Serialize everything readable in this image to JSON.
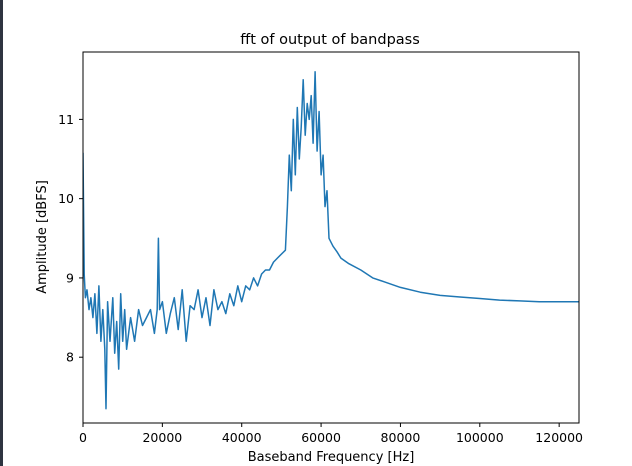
{
  "colors": {
    "line": "#1f77b4",
    "axes": "#000000",
    "background": "#ffffff",
    "window_strip": "#2e3440"
  },
  "chart_data": {
    "type": "line",
    "title": "fft of output of bandpass",
    "xlabel": "Baseband Frequency [Hz]",
    "ylabel": "Amplitude [dBFS]",
    "xlim": [
      0,
      125000
    ],
    "ylim": [
      7.17,
      11.85
    ],
    "grid": false,
    "x_ticks": [
      0,
      20000,
      40000,
      60000,
      80000,
      100000,
      120000
    ],
    "x_tick_labels": [
      "0",
      "20000",
      "40000",
      "60000",
      "80000",
      "100000",
      "120000"
    ],
    "y_ticks": [
      8,
      9,
      10,
      11
    ],
    "y_tick_labels": [
      "8",
      "9",
      "10",
      "11"
    ],
    "series": [
      {
        "x": [
          0,
          300,
          600,
          1000,
          1500,
          2000,
          2500,
          3000,
          3500,
          4000,
          4500,
          5000,
          5500,
          5800,
          6200,
          6800,
          7500,
          8000,
          8500,
          9000,
          9500,
          10000,
          10500,
          11000,
          12000,
          13000,
          14000,
          15000,
          16000,
          17000,
          18000,
          18700,
          19000,
          19300,
          20000,
          21000,
          22000,
          23000,
          24000,
          25000,
          26000,
          27000,
          28000,
          29000,
          30000,
          31000,
          32000,
          33000,
          34000,
          35000,
          36000,
          37000,
          38000,
          39000,
          40000,
          41000,
          42000,
          43000,
          44000,
          45000,
          46000,
          47000,
          48000,
          49000,
          50000,
          51000,
          51500,
          52000,
          52500,
          53000,
          53500,
          54000,
          54500,
          55000,
          55500,
          56000,
          56500,
          57000,
          57500,
          58000,
          58500,
          59000,
          59500,
          60000,
          60500,
          61000,
          61500,
          62000,
          63000,
          64000,
          65000,
          67000,
          70000,
          73000,
          76000,
          80000,
          85000,
          90000,
          95000,
          100000,
          105000,
          110000,
          115000,
          120000,
          125000
        ],
        "y": [
          10.58,
          9.05,
          8.75,
          8.85,
          8.6,
          8.75,
          8.5,
          8.8,
          8.3,
          8.9,
          8.2,
          8.6,
          8.1,
          7.35,
          8.7,
          8.2,
          8.75,
          8.05,
          8.45,
          7.85,
          8.8,
          8.2,
          8.6,
          8.1,
          8.5,
          8.2,
          8.6,
          8.4,
          8.5,
          8.6,
          8.3,
          8.6,
          9.5,
          8.6,
          8.7,
          8.3,
          8.55,
          8.75,
          8.35,
          8.85,
          8.2,
          8.65,
          8.6,
          8.85,
          8.5,
          8.75,
          8.4,
          8.85,
          8.6,
          8.7,
          8.55,
          8.8,
          8.65,
          8.9,
          8.7,
          8.9,
          8.85,
          9.0,
          8.9,
          9.05,
          9.1,
          9.1,
          9.2,
          9.25,
          9.3,
          9.35,
          9.9,
          10.55,
          10.1,
          11.0,
          10.3,
          11.15,
          10.5,
          10.9,
          11.5,
          10.8,
          11.2,
          11.0,
          11.3,
          10.7,
          11.6,
          10.6,
          11.1,
          10.3,
          10.55,
          9.9,
          10.1,
          9.5,
          9.4,
          9.33,
          9.25,
          9.18,
          9.1,
          9.0,
          8.95,
          8.88,
          8.82,
          8.78,
          8.76,
          8.74,
          8.72,
          8.71,
          8.7,
          8.7,
          8.7
        ]
      }
    ]
  }
}
